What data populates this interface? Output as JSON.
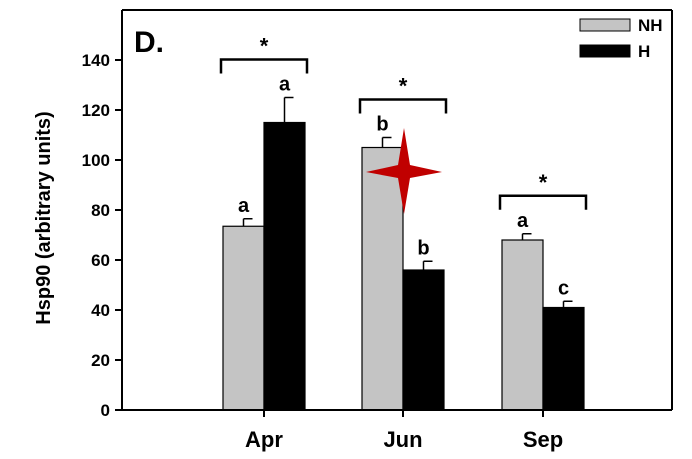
{
  "chart_data": {
    "type": "bar",
    "panel_label": "D.",
    "ylabel": "Hsp90 (arbitrary units)",
    "xlabel": "",
    "ylim": [
      0,
      160
    ],
    "yticks": [
      0,
      20,
      40,
      60,
      80,
      100,
      120,
      140
    ],
    "categories": [
      "Apr",
      "Jun",
      "Sep"
    ],
    "legend_position": "top-right",
    "series": [
      {
        "name": "NH",
        "color": "#c4c4c4",
        "values": [
          73.5,
          105,
          68
        ],
        "errors": [
          3,
          4,
          2.5
        ],
        "letters": [
          "a",
          "b",
          "a"
        ]
      },
      {
        "name": "H",
        "color": "#000000",
        "values": [
          115,
          56,
          41
        ],
        "errors": [
          10,
          3.5,
          2.5
        ],
        "letters": [
          "a",
          "b",
          "c"
        ]
      }
    ],
    "significance": [
      "*",
      "*",
      "*"
    ],
    "marker_color": "#c00000"
  }
}
